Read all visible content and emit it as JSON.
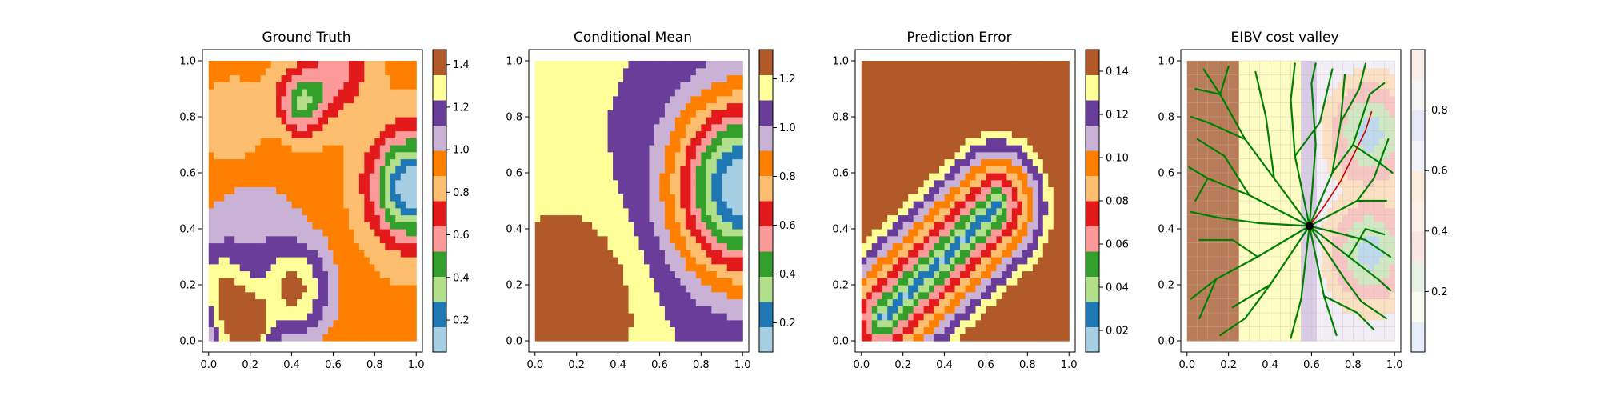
{
  "figure": {
    "panels": [
      {
        "id": "ground-truth",
        "title": "Ground Truth"
      },
      {
        "id": "conditional-mean",
        "title": "Conditional Mean"
      },
      {
        "id": "prediction-error",
        "title": "Prediction Error"
      },
      {
        "id": "eibv-cost-valley",
        "title": "EIBV cost valley"
      }
    ]
  },
  "colors": {
    "paired": [
      "#a6cee3",
      "#1f78b4",
      "#b2df8a",
      "#33a02c",
      "#fb9a99",
      "#e31a1c",
      "#fdbf6f",
      "#ff7f00",
      "#cab2d6",
      "#6a3d9a",
      "#ffff99",
      "#b15928"
    ],
    "path_green": "#008000",
    "path_red": "#cc0000"
  },
  "chart_data": [
    {
      "type": "heatmap",
      "title": "Ground Truth",
      "xlim": [
        -0.03,
        1.03
      ],
      "ylim": [
        -0.04,
        1.04
      ],
      "xticks": [
        "0.0",
        "0.2",
        "0.4",
        "0.6",
        "0.8",
        "1.0"
      ],
      "yticks": [
        "0.0",
        "0.2",
        "0.4",
        "0.6",
        "0.8",
        "1.0"
      ],
      "colorbar": {
        "min": 0.05,
        "max": 1.47,
        "ticks": [
          "0.2",
          "0.4",
          "0.6",
          "0.8",
          "1.0",
          "1.2",
          "1.4"
        ],
        "tick_values": [
          0.2,
          0.4,
          0.6,
          0.8,
          1.0,
          1.2,
          1.4
        ]
      },
      "field": {
        "base": 0.9,
        "bumps": [
          {
            "x": 0.17,
            "y": 0.05,
            "a": 0.7,
            "s": 0.08
          },
          {
            "x": 0.42,
            "y": 0.18,
            "a": 0.45,
            "s": 0.12
          },
          {
            "x": 0.05,
            "y": 0.2,
            "a": 0.35,
            "s": 0.1
          },
          {
            "x": 0.98,
            "y": 0.55,
            "a": -0.85,
            "s": 0.13
          },
          {
            "x": 0.45,
            "y": 0.85,
            "a": -0.5,
            "s": 0.08
          },
          {
            "x": 0.62,
            "y": 0.97,
            "a": -0.3,
            "s": 0.1
          },
          {
            "x": 0.2,
            "y": 0.4,
            "a": 0.15,
            "s": 0.2
          },
          {
            "x": 0.12,
            "y": 0.75,
            "a": -0.15,
            "s": 0.1
          }
        ]
      }
    },
    {
      "type": "heatmap",
      "title": "Conditional Mean",
      "xlim": [
        -0.03,
        1.03
      ],
      "ylim": [
        -0.04,
        1.04
      ],
      "xticks": [
        "0.0",
        "0.2",
        "0.4",
        "0.6",
        "0.8",
        "1.0"
      ],
      "yticks": [
        "0.0",
        "0.2",
        "0.4",
        "0.6",
        "0.8",
        "1.0"
      ],
      "colorbar": {
        "min": 0.08,
        "max": 1.32,
        "ticks": [
          "0.2",
          "0.4",
          "0.6",
          "0.8",
          "1.0",
          "1.2"
        ],
        "tick_values": [
          0.2,
          0.4,
          0.6,
          0.8,
          1.0,
          1.2
        ]
      },
      "field": {
        "base": 1.12,
        "bumps": [
          {
            "x": 1.0,
            "y": 0.55,
            "a": -1.05,
            "s": 0.22
          },
          {
            "x": 0.12,
            "y": 0.1,
            "a": 0.35,
            "s": 0.22
          }
        ]
      }
    },
    {
      "type": "heatmap",
      "title": "Prediction Error",
      "xlim": [
        -0.03,
        1.03
      ],
      "ylim": [
        -0.04,
        1.04
      ],
      "xticks": [
        "0.0",
        "0.2",
        "0.4",
        "0.6",
        "0.8",
        "1.0"
      ],
      "yticks": [
        "0.0",
        "0.2",
        "0.4",
        "0.6",
        "0.8",
        "1.0"
      ],
      "colorbar": {
        "min": 0.01,
        "max": 0.15,
        "ticks": [
          "0.02",
          "0.04",
          "0.06",
          "0.08",
          "0.10",
          "0.12",
          "0.14"
        ],
        "tick_values": [
          0.02,
          0.04,
          0.06,
          0.08,
          0.1,
          0.12,
          0.14
        ]
      },
      "field": {
        "valley": {
          "x1": 0.1,
          "y1": 0.08,
          "x2": 0.65,
          "y2": 0.48,
          "min": 0.02,
          "max": 0.148,
          "width": 0.3
        }
      }
    },
    {
      "type": "heatmap",
      "title": "EIBV cost valley",
      "xlim": [
        -0.03,
        1.03
      ],
      "ylim": [
        -0.04,
        1.04
      ],
      "xticks": [
        "0.0",
        "0.2",
        "0.4",
        "0.6",
        "0.8",
        "1.0"
      ],
      "yticks": [
        "0.0",
        "0.2",
        "0.4",
        "0.6",
        "0.8",
        "1.0"
      ],
      "colorbar": {
        "min": 0.0,
        "max": 1.0,
        "ticks": [
          "0.2",
          "0.4",
          "0.6",
          "0.8"
        ],
        "tick_values": [
          0.2,
          0.4,
          0.6,
          0.8
        ]
      },
      "start_point": {
        "x": 0.59,
        "y": 0.41
      },
      "red_path": [
        [
          0.59,
          0.41
        ],
        [
          0.66,
          0.48
        ],
        [
          0.74,
          0.57
        ],
        [
          0.8,
          0.66
        ],
        [
          0.86,
          0.75
        ],
        [
          0.89,
          0.82
        ]
      ],
      "tree_branches": [
        [
          [
            0.59,
            0.41
          ],
          [
            0.42,
            0.58
          ],
          [
            0.28,
            0.72
          ],
          [
            0.16,
            0.88
          ],
          [
            0.08,
            0.97
          ]
        ],
        [
          [
            0.42,
            0.58
          ],
          [
            0.38,
            0.8
          ],
          [
            0.33,
            0.96
          ]
        ],
        [
          [
            0.28,
            0.72
          ],
          [
            0.1,
            0.78
          ],
          [
            0.02,
            0.8
          ]
        ],
        [
          [
            0.16,
            0.88
          ],
          [
            0.2,
            0.98
          ]
        ],
        [
          [
            0.59,
            0.41
          ],
          [
            0.52,
            0.66
          ],
          [
            0.5,
            0.86
          ],
          [
            0.52,
            0.99
          ]
        ],
        [
          [
            0.52,
            0.66
          ],
          [
            0.64,
            0.78
          ],
          [
            0.7,
            0.97
          ]
        ],
        [
          [
            0.59,
            0.41
          ],
          [
            0.3,
            0.52
          ],
          [
            0.1,
            0.58
          ],
          [
            0.01,
            0.62
          ]
        ],
        [
          [
            0.3,
            0.52
          ],
          [
            0.18,
            0.66
          ],
          [
            0.05,
            0.72
          ]
        ],
        [
          [
            0.59,
            0.41
          ],
          [
            0.35,
            0.42
          ],
          [
            0.15,
            0.44
          ],
          [
            0.02,
            0.46
          ]
        ],
        [
          [
            0.59,
            0.41
          ],
          [
            0.34,
            0.3
          ],
          [
            0.14,
            0.22
          ],
          [
            0.02,
            0.15
          ]
        ],
        [
          [
            0.34,
            0.3
          ],
          [
            0.22,
            0.36
          ],
          [
            0.06,
            0.36
          ]
        ],
        [
          [
            0.59,
            0.41
          ],
          [
            0.4,
            0.2
          ],
          [
            0.28,
            0.08
          ],
          [
            0.16,
            0.02
          ]
        ],
        [
          [
            0.4,
            0.2
          ],
          [
            0.22,
            0.12
          ]
        ],
        [
          [
            0.59,
            0.41
          ],
          [
            0.55,
            0.15
          ],
          [
            0.5,
            0.01
          ]
        ],
        [
          [
            0.59,
            0.41
          ],
          [
            0.66,
            0.16
          ],
          [
            0.72,
            0.02
          ]
        ],
        [
          [
            0.66,
            0.16
          ],
          [
            0.82,
            0.1
          ],
          [
            0.9,
            0.04
          ]
        ],
        [
          [
            0.59,
            0.41
          ],
          [
            0.78,
            0.3
          ],
          [
            0.92,
            0.22
          ],
          [
            0.98,
            0.18
          ]
        ],
        [
          [
            0.78,
            0.3
          ],
          [
            0.86,
            0.4
          ],
          [
            0.95,
            0.38
          ]
        ],
        [
          [
            0.59,
            0.41
          ],
          [
            0.7,
            0.6
          ],
          [
            0.74,
            0.78
          ],
          [
            0.76,
            0.95
          ]
        ],
        [
          [
            0.7,
            0.6
          ],
          [
            0.8,
            0.7
          ],
          [
            0.88,
            0.88
          ],
          [
            0.95,
            0.92
          ]
        ],
        [
          [
            0.74,
            0.78
          ],
          [
            0.83,
            0.9
          ],
          [
            0.86,
            0.99
          ]
        ],
        [
          [
            0.8,
            0.7
          ],
          [
            0.92,
            0.64
          ],
          [
            0.99,
            0.6
          ]
        ],
        [
          [
            0.59,
            0.41
          ],
          [
            0.82,
            0.5
          ],
          [
            0.96,
            0.5
          ]
        ],
        [
          [
            0.82,
            0.5
          ],
          [
            0.9,
            0.58
          ],
          [
            0.97,
            0.72
          ]
        ],
        [
          [
            0.59,
            0.41
          ],
          [
            0.76,
            0.22
          ],
          [
            0.84,
            0.14
          ],
          [
            0.96,
            0.08
          ]
        ],
        [
          [
            0.59,
            0.41
          ],
          [
            0.86,
            0.36
          ],
          [
            0.98,
            0.3
          ]
        ],
        [
          [
            0.59,
            0.41
          ],
          [
            0.62,
            0.7
          ],
          [
            0.6,
            0.92
          ],
          [
            0.62,
            0.99
          ]
        ],
        [
          [
            0.16,
            0.88
          ],
          [
            0.04,
            0.9
          ]
        ],
        [
          [
            0.1,
            0.58
          ],
          [
            0.04,
            0.5
          ]
        ],
        [
          [
            0.14,
            0.22
          ],
          [
            0.06,
            0.08
          ]
        ]
      ]
    }
  ]
}
